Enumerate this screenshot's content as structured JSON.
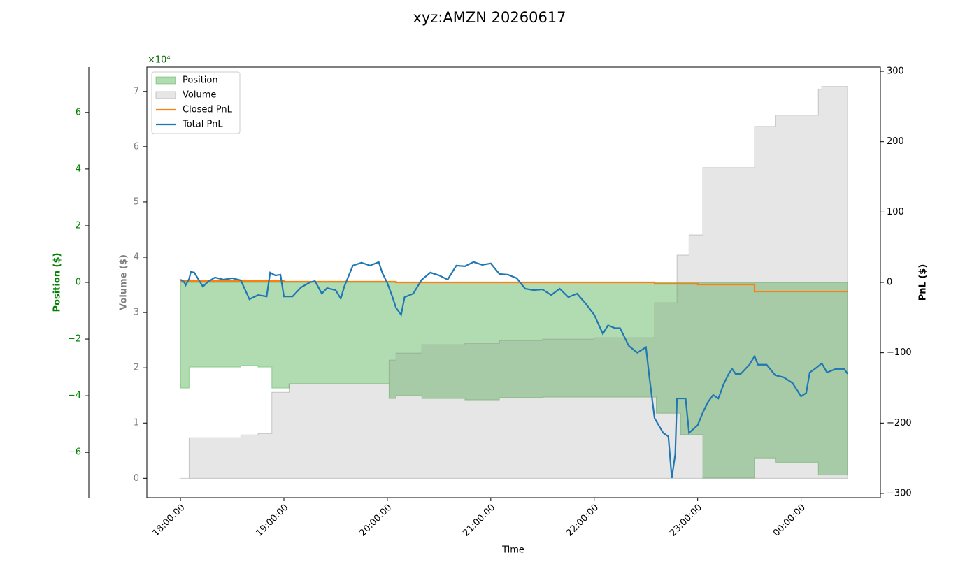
{
  "chart_data": {
    "type": "multi-axis",
    "title": "xyz:AMZN 20260617",
    "xlabel": "Time",
    "ylabel": "Position ($)",
    "y3label": "Volume ($)",
    "y2label": "PnL ($)",
    "y3_offset": "×10⁴",
    "xlim": [
      "17:40:30",
      "00:46:00"
    ],
    "xticks": [
      "18:00:00",
      "19:00:00",
      "20:00:00",
      "21:00:00",
      "22:00:00",
      "23:00:00",
      "00:00:00"
    ],
    "ylim": [
      -7.6,
      7.6
    ],
    "yticks": [
      {
        "value": -6,
        "label": "−6"
      },
      {
        "value": -4,
        "label": "−4"
      },
      {
        "value": -2,
        "label": "−2"
      },
      0,
      2,
      4,
      6
    ],
    "y3lim": [
      -3500,
      74400
    ],
    "y3ticks": [
      0,
      {
        "value": 10000,
        "label": "1"
      },
      {
        "value": 20000,
        "label": "2"
      },
      {
        "value": 30000,
        "label": "3"
      },
      {
        "value": 40000,
        "label": "4"
      },
      {
        "value": 50000,
        "label": "5"
      },
      {
        "value": 60000,
        "label": "6"
      },
      {
        "value": 70000,
        "label": "7"
      }
    ],
    "y2lim": [
      -306,
      306
    ],
    "y2ticks": [
      {
        "value": -300,
        "label": "−300"
      },
      {
        "value": -200,
        "label": "−200"
      },
      {
        "value": -100,
        "label": "−100"
      },
      0,
      100,
      200,
      300
    ],
    "legend": "upper left",
    "series": [
      {
        "name": "Position",
        "kind": "area",
        "axis": "y",
        "color": "#2ca02c",
        "drawstyle": "steps-post",
        "x": [
          "18:00:00",
          "18:05:00",
          "18:35:00",
          "18:45:00",
          "18:53:00",
          "19:03:00",
          "20:01:00",
          "20:05:00",
          "20:20:00",
          "20:45:00",
          "21:05:00",
          "21:30:00",
          "22:36:00",
          "22:50:00",
          "23:03:00",
          "23:33:00",
          "23:45:00",
          "00:10:00",
          "00:27:00"
        ],
        "values": [
          -3.73,
          -2.99,
          -2.94,
          -2.99,
          -3.73,
          -3.58,
          -4.1,
          -4.0,
          -4.1,
          -4.15,
          -4.07,
          -4.05,
          -4.62,
          -5.38,
          -6.91,
          -6.2,
          -6.35,
          -6.8,
          -6.8
        ]
      },
      {
        "name": "Volume",
        "kind": "area",
        "axis": "y3",
        "color": "#808080",
        "drawstyle": "steps-post",
        "x": [
          "18:00:00",
          "18:05:00",
          "18:35:00",
          "18:45:00",
          "18:53:00",
          "19:03:00",
          "20:01:00",
          "20:05:00",
          "20:20:00",
          "20:45:00",
          "21:05:00",
          "21:30:00",
          "22:00:00",
          "22:35:00",
          "22:48:00",
          "22:55:00",
          "23:03:00",
          "23:33:00",
          "23:45:00",
          "00:10:00",
          "00:12:00",
          "00:27:00"
        ],
        "values": [
          0,
          7340,
          7850,
          8100,
          15570,
          17090,
          21390,
          22660,
          24180,
          24430,
          24940,
          25190,
          25440,
          31770,
          40380,
          44050,
          56200,
          63670,
          65700,
          70380,
          70890,
          70890
        ]
      },
      {
        "name": "Closed PnL",
        "kind": "line",
        "axis": "y2",
        "color": "#ff7f0e",
        "drawstyle": "steps-post",
        "x": [
          "18:00:00",
          "19:00:00",
          "20:05:00",
          "22:35:00",
          "23:00:00",
          "23:33:00",
          "00:27:00"
        ],
        "values": [
          2,
          1,
          0,
          -2,
          -3,
          -13,
          -13
        ]
      },
      {
        "name": "Total PnL",
        "kind": "line",
        "axis": "y2",
        "color": "#1f77b4",
        "drawstyle": "default",
        "x": [
          "18:00:00",
          "18:02:00",
          "18:03:00",
          "18:05:00",
          "18:06:00",
          "18:08:00",
          "18:10:00",
          "18:13:00",
          "18:16:00",
          "18:20:00",
          "18:25:00",
          "18:30:00",
          "18:35:00",
          "18:40:00",
          "18:45:00",
          "18:50:00",
          "18:52:00",
          "18:55:00",
          "18:58:00",
          "19:00:00",
          "19:05:00",
          "19:10:00",
          "19:15:00",
          "19:18:00",
          "19:22:00",
          "19:25:00",
          "19:30:00",
          "19:33:00",
          "19:35:00",
          "19:40:00",
          "19:45:00",
          "19:50:00",
          "19:55:00",
          "19:57:00",
          "20:00:00",
          "20:03:00",
          "20:05:00",
          "20:08:00",
          "20:10:00",
          "20:15:00",
          "20:20:00",
          "20:25:00",
          "20:30:00",
          "20:35:00",
          "20:40:00",
          "20:45:00",
          "20:50:00",
          "20:55:00",
          "21:00:00",
          "21:05:00",
          "21:10:00",
          "21:15:00",
          "21:20:00",
          "21:25:00",
          "21:30:00",
          "21:35:00",
          "21:40:00",
          "21:45:00",
          "21:50:00",
          "21:55:00",
          "22:00:00",
          "22:05:00",
          "22:08:00",
          "22:12:00",
          "22:15:00",
          "22:20:00",
          "22:25:00",
          "22:30:00",
          "22:32:00",
          "22:35:00",
          "22:40:00",
          "22:43:00",
          "22:45:00",
          "22:47:00",
          "22:48:00",
          "22:53:00",
          "22:55:00",
          "23:00:00",
          "23:03:00",
          "23:06:00",
          "23:09:00",
          "23:12:00",
          "23:15:00",
          "23:18:00",
          "23:20:00",
          "23:22:00",
          "23:25:00",
          "23:30:00",
          "23:33:00",
          "23:35:00",
          "23:40:00",
          "23:45:00",
          "23:50:00",
          "23:55:00",
          "00:00:00",
          "00:03:00",
          "00:05:00",
          "00:08:00",
          "00:12:00",
          "00:15:00",
          "00:20:00",
          "00:25:00",
          "00:27:00"
        ],
        "values": [
          4,
          1,
          -4,
          5,
          15,
          14,
          6,
          -6,
          1,
          7,
          4,
          6,
          3,
          -24,
          -18,
          -20,
          14,
          10,
          11,
          -20,
          -20,
          -7,
          0,
          2,
          -16,
          -8,
          -11,
          -23,
          -6,
          24,
          28,
          24,
          29,
          14,
          -1,
          -21,
          -36,
          -46,
          -21,
          -16,
          4,
          14,
          10,
          4,
          24,
          23,
          29,
          25,
          27,
          12,
          11,
          6,
          -9,
          -11,
          -10,
          -18,
          -9,
          -21,
          -16,
          -30,
          -46,
          -73,
          -61,
          -65,
          -65,
          -90,
          -100,
          -92,
          -135,
          -193,
          -214,
          -219,
          -278,
          -244,
          -165,
          -165,
          -214,
          -203,
          -185,
          -170,
          -160,
          -165,
          -145,
          -130,
          -123,
          -130,
          -130,
          -117,
          -105,
          -117,
          -117,
          -132,
          -135,
          -143,
          -162,
          -157,
          -128,
          -123,
          -115,
          -128,
          -123,
          -123,
          -130
        ]
      }
    ]
  }
}
